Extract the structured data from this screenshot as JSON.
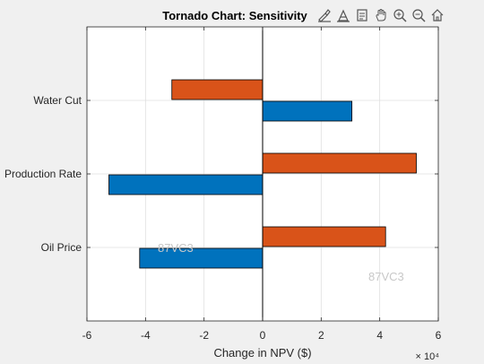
{
  "toolbar": {
    "icons": [
      "brush-icon",
      "data-tips-icon",
      "export-icon",
      "pan-hand-icon",
      "zoom-in-icon",
      "zoom-out-icon",
      "home-icon"
    ]
  },
  "colors": {
    "background": "#f0f0f0",
    "axes_background": "#ffffff",
    "low_series": "#0072bd",
    "high_series": "#d95319",
    "watermark": "#c8c8c8"
  },
  "watermarks": [
    "87VC3",
    "87VC3"
  ],
  "chart_data": {
    "type": "bar",
    "orientation": "horizontal",
    "title": "Tornado Chart: Sensitivity",
    "xlabel": "Change in NPV ($)",
    "ylabel": "",
    "xlim": [
      -60000,
      60000
    ],
    "x_ticks": [
      -60000,
      -40000,
      -20000,
      0,
      20000,
      40000,
      60000
    ],
    "x_tick_labels": [
      "-6",
      "-4",
      "-2",
      "0",
      "2",
      "4",
      "6"
    ],
    "x_exponent_label": "× 10⁴",
    "categories": [
      "Oil Price",
      "Production Rate",
      "Water Cut"
    ],
    "series": [
      {
        "values": [
          -42000,
          -52500,
          30500
        ]
      },
      {
        "values": [
          42000,
          52500,
          -31000
        ]
      }
    ],
    "grid": true,
    "legend": "none"
  }
}
